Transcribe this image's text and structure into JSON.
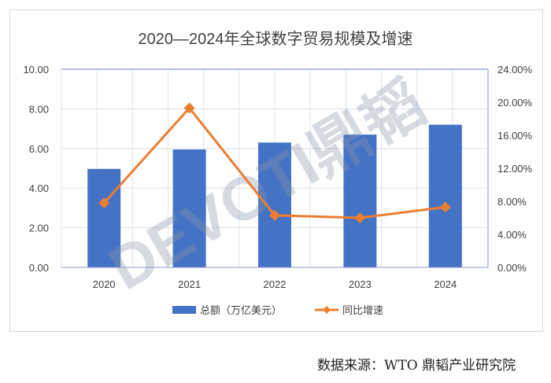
{
  "chart_data": {
    "type": "bar",
    "title": "2020—2024年全球数字贸易规模及增速",
    "categories": [
      "2020",
      "2021",
      "2022",
      "2023",
      "2024"
    ],
    "series": [
      {
        "name": "总额（万亿美元）",
        "type": "bar",
        "axis": "left",
        "color": "#4472C4",
        "values": [
          4.97,
          5.95,
          6.3,
          6.7,
          7.2
        ]
      },
      {
        "name": "同比增速",
        "type": "line",
        "axis": "right",
        "color": "#ED7D31",
        "values": [
          7.8,
          19.3,
          6.3,
          6.0,
          7.3
        ]
      }
    ],
    "ylim": [
      0,
      10
    ],
    "y2lim": [
      0,
      24
    ],
    "yticks": [
      "0.00",
      "2.00",
      "4.00",
      "6.00",
      "8.00",
      "10.00"
    ],
    "y2ticks": [
      "0.00%",
      "4.00%",
      "8.00%",
      "12.00%",
      "16.00%",
      "20.00%",
      "24.00%"
    ],
    "grid": true,
    "legend": "bottom"
  },
  "watermark": "DEVOTI鼎韬",
  "source": "数据来源：WTO  鼎韬产业研究院"
}
